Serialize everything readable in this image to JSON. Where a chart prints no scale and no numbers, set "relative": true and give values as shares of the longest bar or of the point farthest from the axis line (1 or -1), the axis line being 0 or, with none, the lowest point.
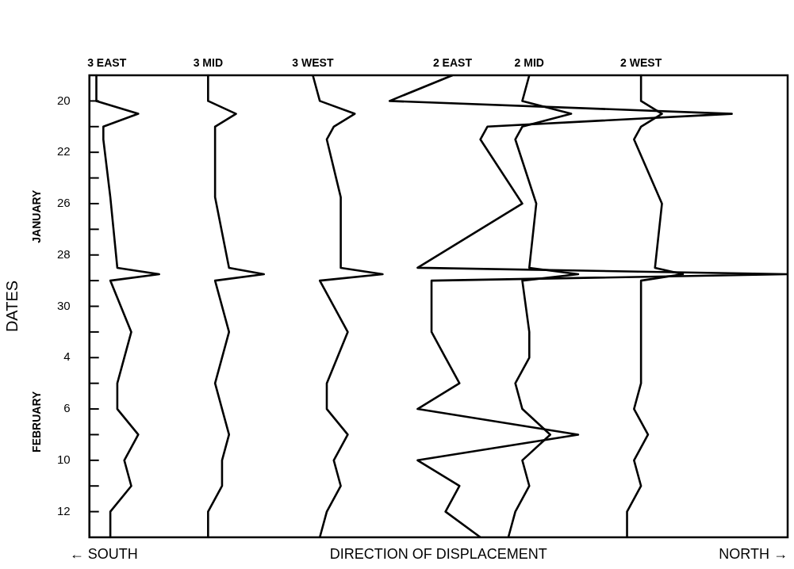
{
  "chart_data": {
    "type": "line",
    "orientation": "horizontal",
    "relative": true,
    "ylabel": "DATES",
    "xlabel": "DIRECTION OF DISPLACEMENT",
    "annotations": [
      "JANUARY",
      "FEBRUARY",
      "← SOUTH",
      "NORTH →"
    ],
    "categories": [
      null,
      null,
      null,
      null,
      "20",
      null,
      null,
      null,
      null,
      null,
      null,
      null,
      "22",
      null,
      null,
      null,
      null,
      null,
      null,
      null,
      "26",
      null,
      null,
      null,
      null,
      null,
      null,
      null,
      "28",
      null,
      null,
      null,
      null,
      null,
      null,
      null,
      "30",
      null,
      null,
      null,
      null,
      null,
      null,
      null,
      "4",
      null,
      null,
      null,
      null,
      null,
      null,
      null,
      "6",
      null,
      null,
      null,
      null,
      null,
      null,
      null,
      "10",
      null,
      null,
      null,
      null,
      null,
      null,
      null,
      "12",
      null,
      null,
      null,
      null
    ],
    "legend": false,
    "marker": "none",
    "line_style": "solid",
    "series": [
      {
        "name": "3 EAST",
        "color": "#000000",
        "values": [
          0.01,
          null,
          null,
          null,
          0.01,
          null,
          0.07,
          null,
          0.02,
          null,
          0.02,
          null,
          null,
          null,
          null,
          null,
          null,
          null,
          null,
          0.03,
          null,
          null,
          null,
          null,
          null,
          null,
          null,
          null,
          null,
          null,
          0.04,
          0.1,
          0.03,
          null,
          null,
          null,
          null,
          null,
          null,
          null,
          0.06,
          null,
          null,
          null,
          null,
          null,
          null,
          null,
          0.04,
          null,
          null,
          null,
          0.04,
          null,
          null,
          null,
          0.07,
          null,
          null,
          null,
          0.05,
          null,
          null,
          null,
          0.06,
          null,
          null,
          null,
          0.03,
          null,
          null,
          null,
          0.03
        ]
      },
      {
        "name": "3 MID",
        "color": "#000000",
        "values": [
          0.17,
          null,
          null,
          null,
          0.17,
          null,
          0.21,
          null,
          0.18,
          null,
          0.18,
          null,
          null,
          null,
          null,
          null,
          null,
          null,
          null,
          0.18,
          null,
          null,
          null,
          null,
          null,
          null,
          null,
          null,
          null,
          null,
          0.2,
          0.25,
          0.18,
          null,
          null,
          null,
          null,
          null,
          null,
          null,
          0.2,
          null,
          null,
          null,
          null,
          null,
          null,
          null,
          0.18,
          null,
          null,
          null,
          0.19,
          null,
          null,
          null,
          0.2,
          null,
          null,
          null,
          0.19,
          null,
          null,
          null,
          0.19,
          null,
          null,
          null,
          0.17,
          null,
          null,
          null,
          0.17
        ]
      },
      {
        "name": "3 WEST",
        "color": "#000000",
        "values": [
          0.32,
          null,
          null,
          null,
          0.33,
          null,
          0.38,
          null,
          0.35,
          null,
          0.34,
          null,
          null,
          null,
          null,
          null,
          null,
          null,
          null,
          0.36,
          null,
          null,
          null,
          null,
          null,
          null,
          null,
          null,
          null,
          null,
          0.36,
          0.42,
          0.33,
          null,
          null,
          null,
          null,
          null,
          null,
          null,
          0.37,
          null,
          null,
          null,
          null,
          null,
          null,
          null,
          0.34,
          null,
          null,
          null,
          0.34,
          null,
          null,
          null,
          0.37,
          null,
          null,
          null,
          0.35,
          null,
          null,
          null,
          0.36,
          null,
          null,
          null,
          0.34,
          null,
          null,
          null,
          0.33
        ]
      },
      {
        "name": "2 EAST",
        "color": "#000000",
        "values": [
          0.52,
          null,
          null,
          null,
          0.43,
          null,
          0.92,
          null,
          0.57,
          null,
          0.56,
          null,
          null,
          null,
          null,
          null,
          null,
          null,
          null,
          null,
          0.62,
          null,
          null,
          null,
          null,
          null,
          null,
          null,
          null,
          null,
          0.47,
          1,
          0.49,
          null,
          null,
          null,
          null,
          null,
          null,
          null,
          0.49,
          null,
          null,
          null,
          0.51,
          null,
          null,
          null,
          0.53,
          null,
          null,
          null,
          0.47,
          null,
          null,
          null,
          0.7,
          null,
          null,
          null,
          0.47,
          null,
          null,
          null,
          0.53,
          null,
          null,
          null,
          0.51,
          null,
          null,
          null,
          0.56
        ]
      },
      {
        "name": "2 MID",
        "color": "#000000",
        "values": [
          0.63,
          null,
          null,
          null,
          0.62,
          null,
          0.69,
          null,
          0.62,
          null,
          0.61,
          null,
          null,
          null,
          null,
          null,
          null,
          null,
          null,
          null,
          0.64,
          null,
          null,
          null,
          null,
          null,
          null,
          null,
          null,
          null,
          0.63,
          0.7,
          0.62,
          null,
          null,
          null,
          null,
          null,
          null,
          null,
          0.63,
          null,
          null,
          null,
          0.63,
          null,
          null,
          null,
          0.61,
          null,
          null,
          null,
          0.62,
          null,
          null,
          null,
          0.66,
          null,
          null,
          null,
          0.62,
          null,
          null,
          null,
          0.63,
          null,
          null,
          null,
          0.61,
          null,
          null,
          null,
          0.6
        ]
      },
      {
        "name": "2 WEST",
        "color": "#000000",
        "values": [
          0.79,
          null,
          null,
          null,
          0.79,
          null,
          0.82,
          null,
          0.79,
          null,
          0.78,
          null,
          null,
          null,
          null,
          null,
          null,
          null,
          null,
          null,
          0.82,
          null,
          null,
          null,
          null,
          null,
          null,
          null,
          null,
          null,
          0.81,
          0.85,
          0.79,
          null,
          null,
          null,
          null,
          null,
          null,
          null,
          0.79,
          null,
          null,
          null,
          null,
          null,
          null,
          null,
          0.79,
          null,
          null,
          null,
          0.78,
          null,
          null,
          null,
          0.8,
          null,
          null,
          null,
          0.78,
          null,
          null,
          null,
          0.79,
          null,
          null,
          null,
          0.77,
          null,
          null,
          null,
          0.77
        ]
      }
    ]
  }
}
